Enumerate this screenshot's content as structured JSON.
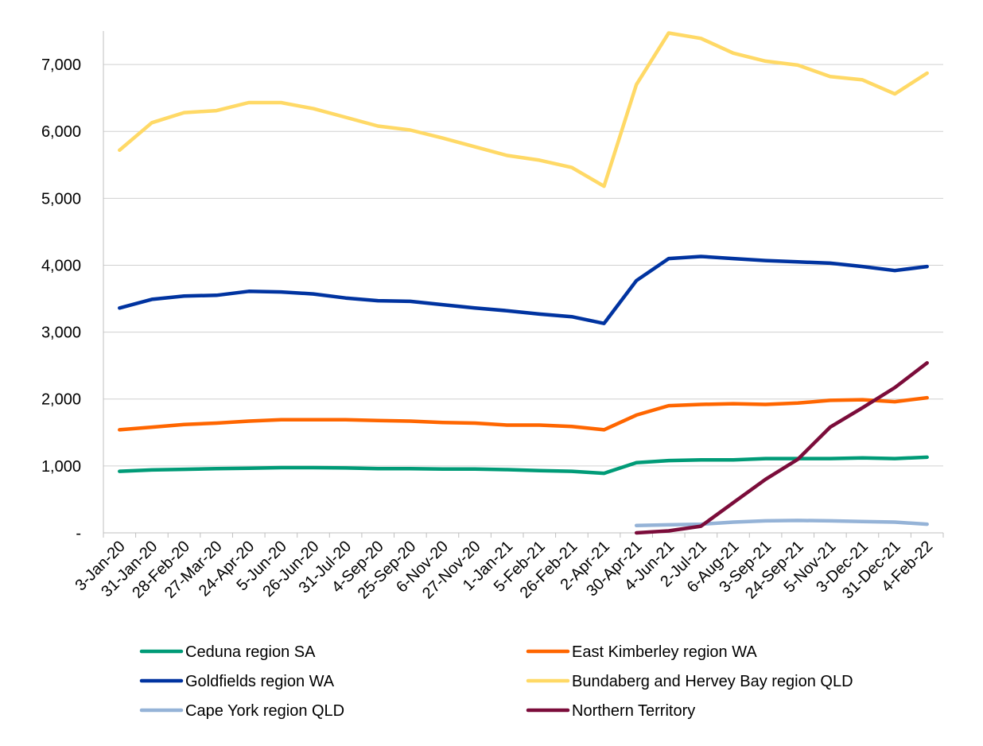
{
  "chart_data": {
    "type": "line",
    "title": "",
    "xlabel": "",
    "ylabel": "",
    "ylim": [
      0,
      7500
    ],
    "yticks": [
      0,
      1000,
      2000,
      3000,
      4000,
      5000,
      6000,
      7000
    ],
    "ytick_labels": [
      "-",
      "1,000",
      "2,000",
      "3,000",
      "4,000",
      "5,000",
      "6,000",
      "7,000"
    ],
    "grid": true,
    "legend_position": "bottom",
    "x": [
      "3-Jan-20",
      "31-Jan-20",
      "28-Feb-20",
      "27-Mar-20",
      "24-Apr-20",
      "5-Jun-20",
      "26-Jun-20",
      "31-Jul-20",
      "4-Sep-20",
      "25-Sep-20",
      "6-Nov-20",
      "27-Nov-20",
      "1-Jan-21",
      "5-Feb-21",
      "26-Feb-21",
      "2-Apr-21",
      "30-Apr-21",
      "4-Jun-21",
      "2-Jul-21",
      "6-Aug-21",
      "3-Sep-21",
      "24-Sep-21",
      "5-Nov-21",
      "3-Dec-21",
      "31-Dec-21",
      "4-Feb-22"
    ],
    "series": [
      {
        "name": "Ceduna region SA",
        "color": "#009B77",
        "values": [
          920,
          940,
          950,
          960,
          965,
          975,
          975,
          970,
          960,
          960,
          955,
          955,
          945,
          930,
          920,
          890,
          1050,
          1080,
          1090,
          1090,
          1110,
          1110,
          1110,
          1120,
          1110,
          1130
        ]
      },
      {
        "name": "East Kimberley region WA",
        "color": "#FF6600",
        "values": [
          1540,
          1580,
          1620,
          1640,
          1670,
          1690,
          1690,
          1690,
          1680,
          1670,
          1650,
          1640,
          1610,
          1610,
          1590,
          1540,
          1760,
          1900,
          1920,
          1930,
          1920,
          1940,
          1980,
          1990,
          1960,
          2020
        ]
      },
      {
        "name": "Goldfields region WA",
        "color": "#0033A0",
        "values": [
          3360,
          3490,
          3540,
          3550,
          3610,
          3600,
          3570,
          3510,
          3470,
          3460,
          3410,
          3360,
          3320,
          3270,
          3230,
          3130,
          3770,
          4100,
          4130,
          4100,
          4070,
          4050,
          4030,
          3980,
          3920,
          3980
        ]
      },
      {
        "name": "Bundaberg and Hervey Bay region QLD",
        "color": "#FFD966",
        "values": [
          5720,
          6130,
          6280,
          6310,
          6430,
          6430,
          6340,
          6210,
          6080,
          6020,
          5900,
          5770,
          5640,
          5570,
          5460,
          5180,
          6700,
          7470,
          7390,
          7170,
          7050,
          6990,
          6820,
          6770,
          6560,
          6870
        ]
      },
      {
        "name": "Cape York region QLD",
        "color": "#95B3D7",
        "values": [
          null,
          null,
          null,
          null,
          null,
          null,
          null,
          null,
          null,
          null,
          null,
          null,
          null,
          null,
          null,
          null,
          110,
          120,
          130,
          160,
          180,
          185,
          180,
          170,
          160,
          130
        ]
      },
      {
        "name": "Northern Territory",
        "color": "#7B0C3A",
        "values": [
          null,
          null,
          null,
          null,
          null,
          null,
          null,
          null,
          null,
          null,
          null,
          null,
          null,
          null,
          null,
          null,
          0,
          30,
          100,
          450,
          800,
          1100,
          1580,
          1870,
          2170,
          2540
        ]
      }
    ],
    "legend_order": [
      0,
      1,
      2,
      3,
      4,
      5
    ]
  }
}
